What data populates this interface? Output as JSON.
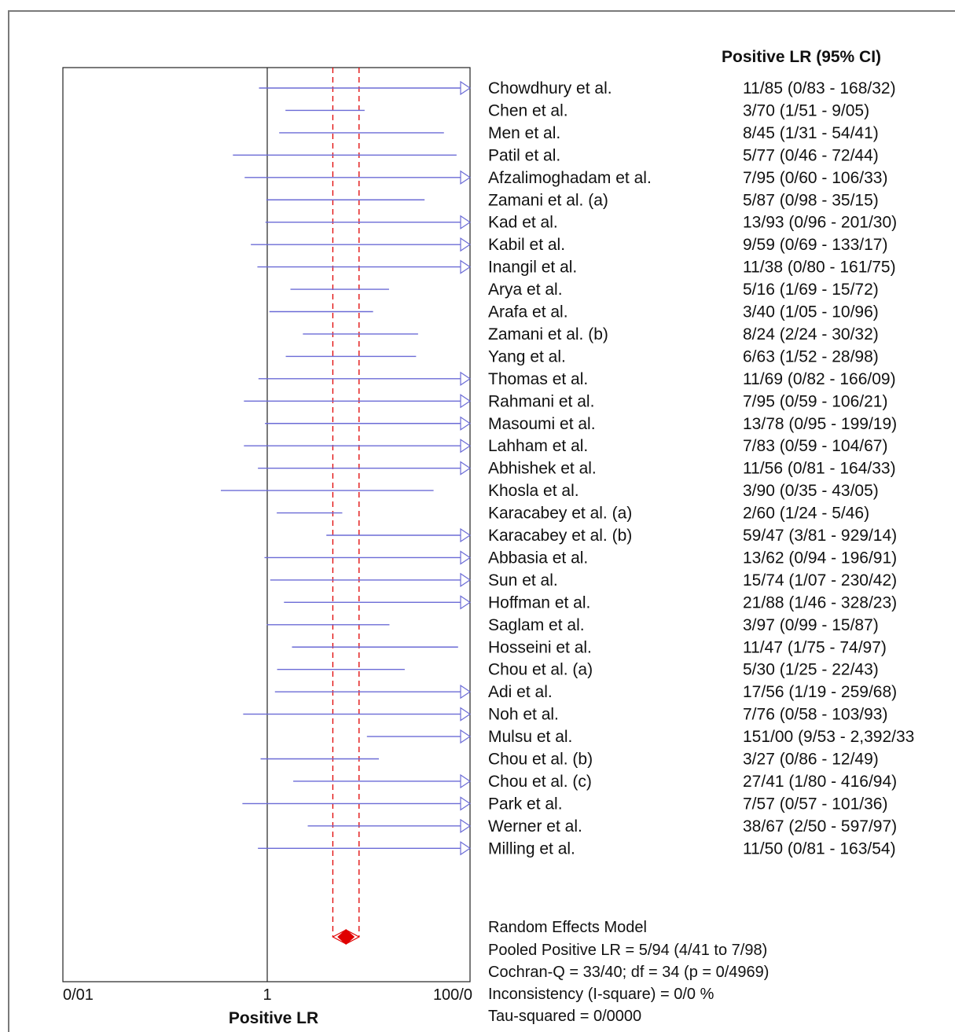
{
  "chart_data": {
    "type": "forest",
    "header": "Positive LR (95% CI)",
    "xlabel": "Positive LR",
    "x_scale": "log",
    "xlim": [
      0.01,
      100
    ],
    "x_ticks": [
      "0/01",
      "1",
      "100/0"
    ],
    "line_color": "#6b6bd6",
    "pooled_color": "#e00000",
    "studies": [
      {
        "name": "Chowdhury et al.",
        "text": "11/85   (0/83 - 168/32)",
        "lr": 11.85,
        "lo": 0.83,
        "hi": 168.32
      },
      {
        "name": "Chen et al.",
        "text": "3/70   (1/51 - 9/05)",
        "lr": 3.7,
        "lo": 1.51,
        "hi": 9.05
      },
      {
        "name": "Men et al.",
        "text": "8/45   (1/31 - 54/41)",
        "lr": 8.45,
        "lo": 1.31,
        "hi": 54.41
      },
      {
        "name": "Patil et al.",
        "text": "5/77   (0/46 - 72/44)",
        "lr": 5.77,
        "lo": 0.46,
        "hi": 72.44
      },
      {
        "name": "Afzalimoghadam et al.",
        "text": "7/95   (0/60 - 106/33)",
        "lr": 7.95,
        "lo": 0.6,
        "hi": 106.33
      },
      {
        "name": "Zamani et al. (a)",
        "text": "5/87   (0/98 - 35/15)",
        "lr": 5.87,
        "lo": 0.98,
        "hi": 35.15
      },
      {
        "name": "Kad et al.",
        "text": "13/93   (0/96 - 201/30)",
        "lr": 13.93,
        "lo": 0.96,
        "hi": 201.3
      },
      {
        "name": "Kabil et al.",
        "text": "9/59   (0/69 - 133/17)",
        "lr": 9.59,
        "lo": 0.69,
        "hi": 133.17
      },
      {
        "name": "Inangil et al.",
        "text": "11/38   (0/80 - 161/75)",
        "lr": 11.38,
        "lo": 0.8,
        "hi": 161.75
      },
      {
        "name": "Arya et al.",
        "text": "5/16   (1/69 - 15/72)",
        "lr": 5.16,
        "lo": 1.69,
        "hi": 15.72
      },
      {
        "name": "Arafa et al.",
        "text": "3/40   (1/05 - 10/96)",
        "lr": 3.4,
        "lo": 1.05,
        "hi": 10.96
      },
      {
        "name": "Zamani et al. (b)",
        "text": "8/24   (2/24 - 30/32)",
        "lr": 8.24,
        "lo": 2.24,
        "hi": 30.32
      },
      {
        "name": "Yang et al.",
        "text": "6/63   (1/52 - 28/98)",
        "lr": 6.63,
        "lo": 1.52,
        "hi": 28.98
      },
      {
        "name": "Thomas et al.",
        "text": "11/69   (0/82 - 166/09)",
        "lr": 11.69,
        "lo": 0.82,
        "hi": 166.09
      },
      {
        "name": "Rahmani et al.",
        "text": "7/95   (0/59 - 106/21)",
        "lr": 7.95,
        "lo": 0.59,
        "hi": 106.21
      },
      {
        "name": "Masoumi et al.",
        "text": "13/78   (0/95 - 199/19)",
        "lr": 13.78,
        "lo": 0.95,
        "hi": 199.19
      },
      {
        "name": "Lahham et al.",
        "text": "7/83   (0/59 - 104/67)",
        "lr": 7.83,
        "lo": 0.59,
        "hi": 104.67
      },
      {
        "name": "Abhishek et al.",
        "text": "11/56   (0/81 - 164/33)",
        "lr": 11.56,
        "lo": 0.81,
        "hi": 164.33
      },
      {
        "name": "Khosla et al.",
        "text": "3/90   (0/35 - 43/05)",
        "lr": 3.9,
        "lo": 0.35,
        "hi": 43.05
      },
      {
        "name": "Karacabey et al. (a)",
        "text": "2/60   (1/24 - 5/46)",
        "lr": 2.6,
        "lo": 1.24,
        "hi": 5.46
      },
      {
        "name": "Karacabey et al. (b)",
        "text": "59/47   (3/81 - 929/14)",
        "lr": 59.47,
        "lo": 3.81,
        "hi": 929.14
      },
      {
        "name": "Abbasia et al.",
        "text": "13/62   (0/94 - 196/91)",
        "lr": 13.62,
        "lo": 0.94,
        "hi": 196.91
      },
      {
        "name": "Sun et al.",
        "text": "15/74   (1/07 - 230/42)",
        "lr": 15.74,
        "lo": 1.07,
        "hi": 230.42
      },
      {
        "name": "Hoffman et al.",
        "text": "21/88   (1/46 - 328/23)",
        "lr": 21.88,
        "lo": 1.46,
        "hi": 328.23
      },
      {
        "name": "Saglam et al.",
        "text": "3/97   (0/99 - 15/87)",
        "lr": 3.97,
        "lo": 0.99,
        "hi": 15.87
      },
      {
        "name": "Hosseini et al.",
        "text": "11/47   (1/75 - 74/97)",
        "lr": 11.47,
        "lo": 1.75,
        "hi": 74.97
      },
      {
        "name": "Chou et al. (a)",
        "text": "5/30   (1/25 - 22/43)",
        "lr": 5.3,
        "lo": 1.25,
        "hi": 22.43
      },
      {
        "name": "Adi et al.",
        "text": "17/56   (1/19 - 259/68)",
        "lr": 17.56,
        "lo": 1.19,
        "hi": 259.68
      },
      {
        "name": "Noh et al.",
        "text": "7/76   (0/58 - 103/93)",
        "lr": 7.76,
        "lo": 0.58,
        "hi": 103.93
      },
      {
        "name": "Mulsu et al.",
        "text": "151/00   (9/53 - 2,392/33",
        "lr": 151.0,
        "lo": 9.53,
        "hi": 2392.33
      },
      {
        "name": "Chou et al. (b)",
        "text": "3/27   (0/86 - 12/49)",
        "lr": 3.27,
        "lo": 0.86,
        "hi": 12.49
      },
      {
        "name": "Chou et al. (c)",
        "text": "27/41   (1/80 - 416/94)",
        "lr": 27.41,
        "lo": 1.8,
        "hi": 416.94
      },
      {
        "name": "Park et al.",
        "text": "7/57   (0/57 - 101/36)",
        "lr": 7.57,
        "lo": 0.57,
        "hi": 101.36
      },
      {
        "name": "Werner et al.",
        "text": "38/67   (2/50 - 597/97)",
        "lr": 38.67,
        "lo": 2.5,
        "hi": 597.97
      },
      {
        "name": "Milling et al.",
        "text": "11/50   (0/81 - 163/54)",
        "lr": 11.5,
        "lo": 0.81,
        "hi": 163.54
      }
    ],
    "pooled": {
      "lr": 5.94,
      "lo": 4.41,
      "hi": 7.98
    },
    "summary": [
      "Random Effects Model",
      "Pooled Positive LR = 5/94 (4/41 to 7/98)",
      "Cochran-Q = 33/40; df =  34 (p = 0/4969)",
      "Inconsistency (I-square) = 0/0 %",
      "Tau-squared = 0/0000"
    ]
  }
}
